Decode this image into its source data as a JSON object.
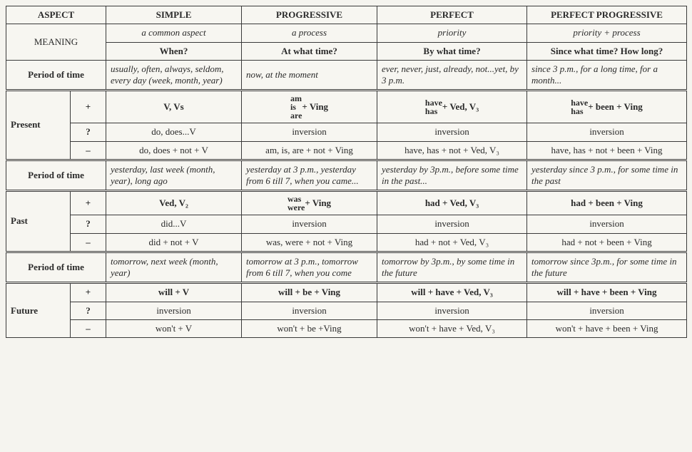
{
  "header": {
    "aspect": "ASPECT",
    "simple": "SIMPLE",
    "progressive": "PROGRESSIVE",
    "perfect": "PERFECT",
    "perfprog": "PERFECT PROGRESSIVE"
  },
  "meaning": {
    "label": "MEANING",
    "r1": {
      "simple": "a common aspect",
      "progressive": "a process",
      "perfect": "priority",
      "perfprog": "priority + process"
    },
    "r2": {
      "simple": "When?",
      "progressive": "At what time?",
      "perfect": "By what time?",
      "perfprog": "Since what time? How long?"
    }
  },
  "period_present": {
    "label": "Period of time",
    "simple": "usually, often, always, seldom, every day (week, month, year)",
    "progressive": "now, at the moment",
    "perfect": "ever, never, just, already, not...yet, by 3 p.m.",
    "perfprog": "since 3 p.m., for a long time, for a month..."
  },
  "present": {
    "label": "Present",
    "plus": {
      "simple": "V, Vs",
      "prog_stack": [
        "am",
        "is",
        "are"
      ],
      "prog_rest": " + Ving",
      "perf_stack": [
        "have",
        "has"
      ],
      "perf_rest": " + Ved, V₃",
      "pp_stack": [
        "have",
        "has"
      ],
      "pp_rest": " + been + Ving"
    },
    "q": {
      "simple": "do, does...V",
      "progressive": "inversion",
      "perfect": "inversion",
      "perfprog": "inversion"
    },
    "neg": {
      "simple": "do, does + not + V",
      "progressive": "am, is, are + not + Ving",
      "perfect": "have, has + not + Ved, V₃",
      "perfprog": "have, has + not + been + Ving"
    }
  },
  "period_past": {
    "label": "Period of time",
    "simple": "yesterday, last week (month, year), long ago",
    "progressive": "yesterday at 3 p.m., yesterday from 6 till 7, when you came...",
    "perfect": "yesterday by 3p.m., before some time in the past...",
    "perfprog": "yesterday since 3 p.m., for some time in the past"
  },
  "past": {
    "label": "Past",
    "plus": {
      "simple": "Ved, V₂",
      "prog_stack": [
        "was",
        "were"
      ],
      "prog_rest": " + Ving",
      "perfect": "had + Ved, V₃",
      "perfprog": "had + been + Ving"
    },
    "q": {
      "simple": "did...V",
      "progressive": "inversion",
      "perfect": "inversion",
      "perfprog": "inversion"
    },
    "neg": {
      "simple": "did + not + V",
      "progressive": "was, were + not + Ving",
      "perfect": "had + not + Ved, V₃",
      "perfprog": "had + not + been + Ving"
    }
  },
  "period_future": {
    "label": "Period of time",
    "simple": "tomorrow, next week (month, year)",
    "progressive": "tomorrow at 3 p.m., tomorrow from 6 till 7, when you come",
    "perfect": "tomorrow by 3p.m., by some time in the future",
    "perfprog": "tomorrow since 3p.m., for some time in the future"
  },
  "future": {
    "label": "Future",
    "plus": {
      "simple": "will + V",
      "progressive": "will + be + Ving",
      "perfect": "will + have + Ved, V₃",
      "perfprog": "will + have + been + Ving"
    },
    "q": {
      "simple": "inversion",
      "progressive": "inversion",
      "perfect": "inversion",
      "perfprog": "inversion"
    },
    "neg": {
      "simple": "won't + V",
      "progressive": "won't + be +Ving",
      "perfect": "won't + have + Ved, V₃",
      "perfprog": "won't + have + been + Ving"
    }
  },
  "signs": {
    "plus": "+",
    "q": "?",
    "neg": "–"
  }
}
